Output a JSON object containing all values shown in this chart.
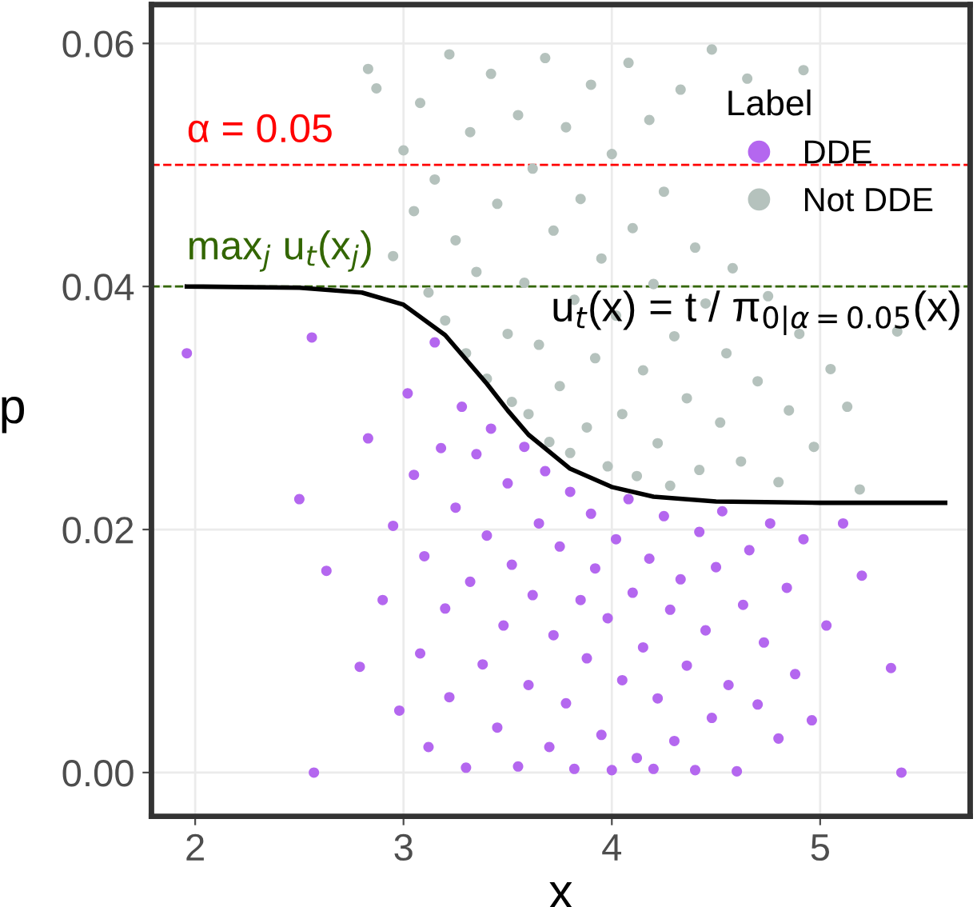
{
  "chart_data": {
    "type": "scatter",
    "xlabel": "x",
    "ylabel": "p",
    "legend_title": "Label",
    "legend": "top right",
    "grid": true,
    "marker": "circle",
    "xlim": [
      1.79,
      5.72
    ],
    "ylim": [
      -0.0036,
      0.0632
    ],
    "xticks": [
      2,
      3,
      4,
      5
    ],
    "yticks": [
      {
        "value": 0,
        "label": "0.00"
      },
      {
        "value": 0.02,
        "label": "0.02"
      },
      {
        "value": 0.04,
        "label": "0.04"
      },
      {
        "value": 0.06,
        "label": "0.06"
      }
    ],
    "ref_lines": [
      {
        "axis": "y",
        "value": 0.05,
        "label": "α = 0.05",
        "color": "#ff0000",
        "line_style": "dashed"
      },
      {
        "axis": "y",
        "value": 0.04,
        "label": "max$_{j}$ u$_{t}$(x$_{j}$)",
        "color": "#336600",
        "line_style": "dashed"
      }
    ],
    "annotations": [
      "u$_{t}$(x) = t / π$_{0|α=0.05}$(x)"
    ],
    "series": [
      {
        "name": "DDE",
        "color": "#b467ef",
        "x": [
          1.96,
          2.5,
          2.56,
          2.63,
          2.57,
          2.79,
          2.83,
          2.9,
          2.95,
          2.98,
          3.02,
          3.05,
          3.08,
          3.1,
          3.12,
          3.15,
          3.18,
          3.2,
          3.22,
          3.25,
          3.28,
          3.3,
          3.32,
          3.35,
          3.38,
          3.4,
          3.42,
          3.45,
          3.48,
          3.5,
          3.52,
          3.55,
          3.58,
          3.6,
          3.62,
          3.65,
          3.68,
          3.7,
          3.72,
          3.75,
          3.78,
          3.8,
          3.82,
          3.85,
          3.88,
          3.9,
          3.92,
          3.95,
          3.98,
          4.0,
          4.02,
          4.05,
          4.08,
          4.1,
          4.12,
          4.15,
          4.18,
          4.2,
          4.22,
          4.25,
          4.28,
          4.3,
          4.33,
          4.36,
          4.4,
          4.42,
          4.45,
          4.48,
          4.5,
          4.53,
          4.56,
          4.6,
          4.63,
          4.66,
          4.7,
          4.73,
          4.76,
          4.8,
          4.84,
          4.88,
          4.92,
          4.96,
          5.03,
          5.11,
          5.2,
          5.34,
          5.39
        ],
        "values": [
          0.0345,
          0.0225,
          0.0358,
          0.0166,
          0.0,
          0.0087,
          0.0275,
          0.0142,
          0.0203,
          0.0051,
          0.0312,
          0.0245,
          0.0098,
          0.0178,
          0.0021,
          0.0354,
          0.0267,
          0.0135,
          0.0062,
          0.0218,
          0.0301,
          0.0004,
          0.0157,
          0.0262,
          0.0089,
          0.0195,
          0.0283,
          0.0037,
          0.0121,
          0.0238,
          0.0171,
          0.0005,
          0.0268,
          0.0072,
          0.0146,
          0.0205,
          0.0248,
          0.0021,
          0.0113,
          0.0186,
          0.0057,
          0.0231,
          0.0003,
          0.0142,
          0.0094,
          0.0213,
          0.0168,
          0.0031,
          0.0127,
          0.0002,
          0.0192,
          0.0076,
          0.0225,
          0.0148,
          0.0012,
          0.0103,
          0.0176,
          0.0003,
          0.0061,
          0.0211,
          0.0134,
          0.0026,
          0.0159,
          0.0088,
          0.0002,
          0.0198,
          0.0117,
          0.0045,
          0.0169,
          0.0215,
          0.0072,
          0.0001,
          0.0138,
          0.0183,
          0.0056,
          0.0107,
          0.0205,
          0.0028,
          0.0152,
          0.0081,
          0.0192,
          0.0043,
          0.0121,
          0.0205,
          0.0162,
          0.0086,
          0.0
        ]
      },
      {
        "name": "Not DDE",
        "color": "#b5c2bd",
        "x": [
          2.83,
          2.87,
          2.95,
          3.0,
          3.05,
          3.08,
          3.12,
          3.15,
          3.2,
          3.22,
          3.25,
          3.3,
          3.32,
          3.35,
          3.4,
          3.42,
          3.45,
          3.5,
          3.52,
          3.55,
          3.58,
          3.6,
          3.62,
          3.65,
          3.68,
          3.7,
          3.72,
          3.75,
          3.78,
          3.8,
          3.82,
          3.85,
          3.88,
          3.9,
          3.92,
          3.95,
          3.98,
          4.0,
          4.02,
          4.05,
          4.08,
          4.1,
          4.12,
          4.15,
          4.18,
          4.2,
          4.22,
          4.25,
          4.28,
          4.3,
          4.33,
          4.36,
          4.4,
          4.42,
          4.45,
          4.48,
          4.52,
          4.55,
          4.58,
          4.62,
          4.65,
          4.7,
          4.75,
          4.8,
          4.85,
          4.9,
          4.92,
          4.97,
          5.05,
          5.13,
          5.19,
          5.37
        ],
        "values": [
          0.0579,
          0.0563,
          0.0425,
          0.0512,
          0.0462,
          0.0551,
          0.0395,
          0.0488,
          0.0372,
          0.0591,
          0.0438,
          0.0345,
          0.0527,
          0.0412,
          0.0324,
          0.0575,
          0.0468,
          0.0361,
          0.0305,
          0.0541,
          0.0403,
          0.0295,
          0.0497,
          0.0352,
          0.0588,
          0.0272,
          0.0446,
          0.0318,
          0.0531,
          0.0263,
          0.0389,
          0.0472,
          0.0284,
          0.0566,
          0.0341,
          0.0423,
          0.0252,
          0.0509,
          0.0376,
          0.0295,
          0.0584,
          0.0448,
          0.0244,
          0.0331,
          0.0537,
          0.0402,
          0.0271,
          0.0478,
          0.0236,
          0.0359,
          0.0562,
          0.0308,
          0.0432,
          0.0249,
          0.0386,
          0.0595,
          0.0288,
          0.0345,
          0.0415,
          0.0256,
          0.0571,
          0.0322,
          0.0392,
          0.0239,
          0.0298,
          0.0361,
          0.0578,
          0.0268,
          0.0332,
          0.0301,
          0.0233,
          0.0363
        ]
      },
      {
        "type": "line",
        "marker": "none",
        "color": "#000000",
        "x": [
          1.96,
          2.5,
          2.8,
          3.0,
          3.2,
          3.4,
          3.5,
          3.6,
          3.8,
          4.0,
          4.2,
          4.5,
          5.0,
          5.6
        ],
        "values": [
          0.04,
          0.0399,
          0.0395,
          0.0385,
          0.036,
          0.032,
          0.0298,
          0.0278,
          0.025,
          0.0235,
          0.0227,
          0.0223,
          0.0222,
          0.0222
        ]
      }
    ]
  }
}
